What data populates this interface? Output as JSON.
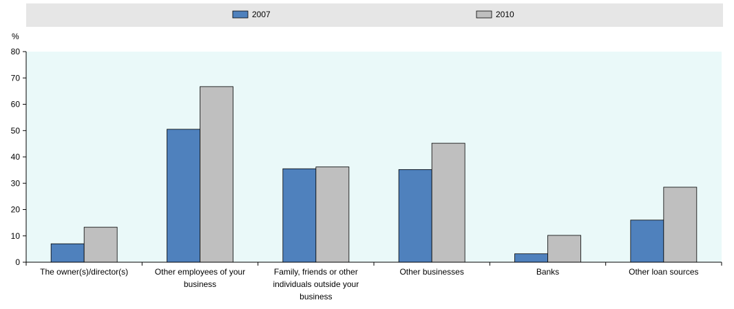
{
  "chart_data": {
    "type": "bar",
    "ylabel": "%",
    "ylim": [
      0,
      80
    ],
    "yticks": [
      0,
      10,
      20,
      30,
      40,
      50,
      60,
      70,
      80
    ],
    "categories": [
      [
        "The owner(s)/director(s)"
      ],
      [
        "Other employees of your",
        "business"
      ],
      [
        "Family, friends or other",
        "individuals outside your",
        "business"
      ],
      [
        "Other businesses"
      ],
      [
        "Banks"
      ],
      [
        "Other loan sources"
      ]
    ],
    "series": [
      {
        "name": "2007",
        "color": "#4f81bd",
        "values": [
          7,
          50.5,
          35.5,
          35.2,
          3.2,
          16
        ]
      },
      {
        "name": "2010",
        "color": "#bfbfbf",
        "values": [
          13.3,
          66.7,
          36.2,
          45.2,
          10.2,
          28.5
        ]
      }
    ],
    "legend_position": "top",
    "plot_background": "#eaf9f9",
    "legend_background": "#e6e6e6"
  }
}
